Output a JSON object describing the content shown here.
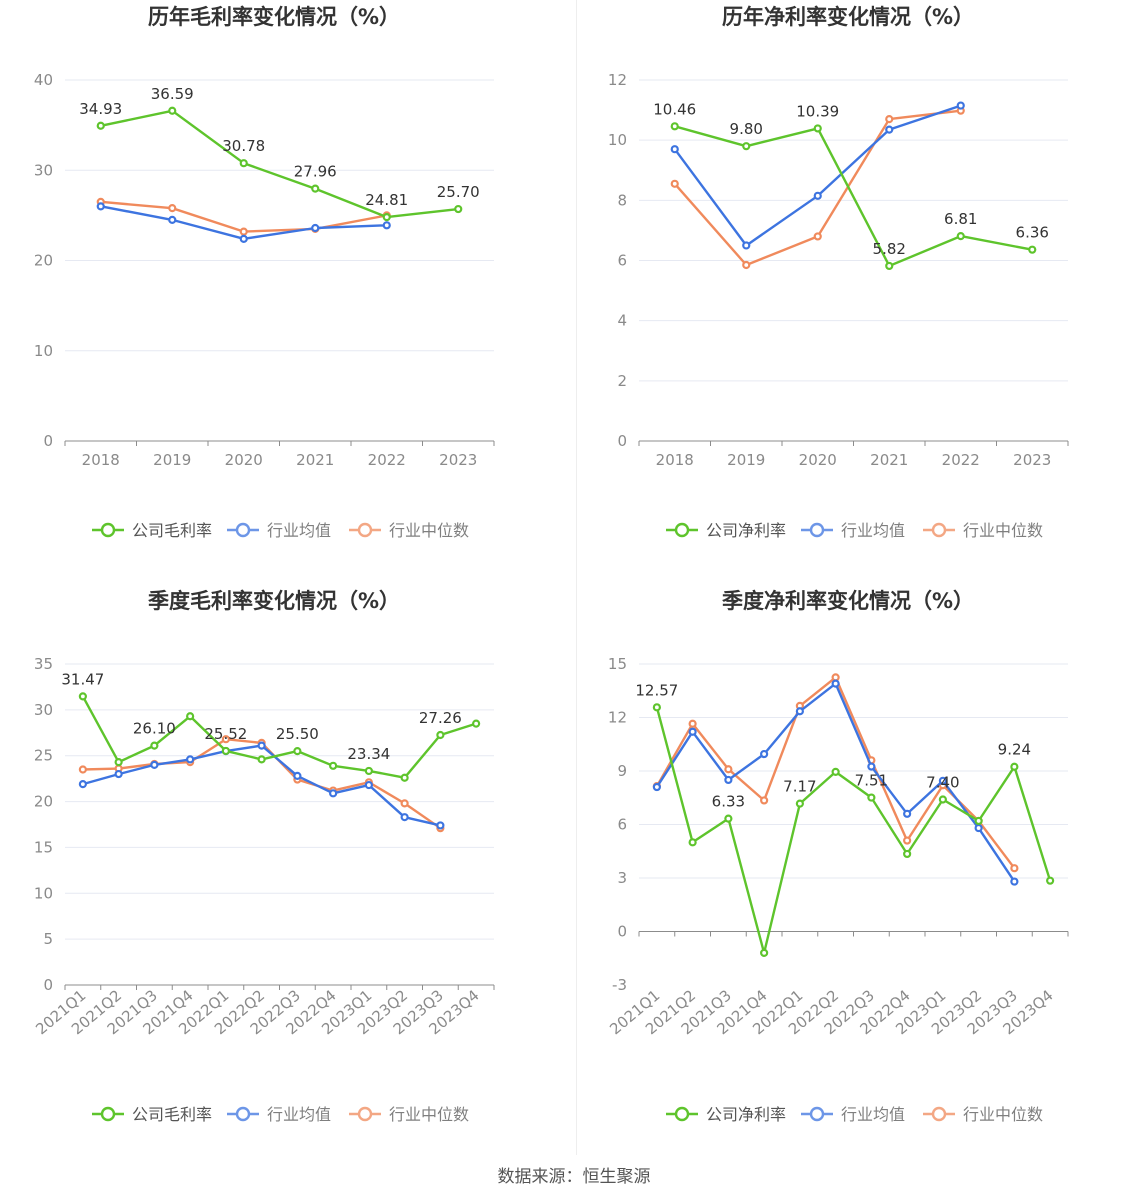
{
  "source": "数据来源：恒生聚源",
  "colors": {
    "company": "#5ec42c",
    "avg": "#3d74e0",
    "median": "#f08a5c"
  },
  "chart_data": [
    {
      "type": "line",
      "title": "历年毛利率变化情况（%）",
      "categories": [
        "2018",
        "2019",
        "2020",
        "2021",
        "2022",
        "2023"
      ],
      "ylim": [
        0,
        40
      ],
      "yticks": [
        0,
        10,
        20,
        30,
        40
      ],
      "rotate_x": false,
      "grid": true,
      "legend_position": "bottom",
      "series": [
        {
          "name": "公司毛利率",
          "key": "company",
          "values": [
            34.93,
            36.59,
            30.78,
            27.96,
            24.81,
            25.7
          ],
          "labels": [
            "34.93",
            "36.59",
            "30.78",
            "27.96",
            "24.81",
            "25.70"
          ]
        },
        {
          "name": "行业均值",
          "key": "avg",
          "values": [
            26.0,
            24.5,
            22.4,
            23.6,
            23.9,
            null
          ]
        },
        {
          "name": "行业中位数",
          "key": "median",
          "values": [
            26.5,
            25.8,
            23.2,
            23.5,
            25.0,
            null
          ]
        }
      ]
    },
    {
      "type": "line",
      "title": "历年净利率变化情况（%）",
      "categories": [
        "2018",
        "2019",
        "2020",
        "2021",
        "2022",
        "2023"
      ],
      "ylim": [
        0,
        12
      ],
      "yticks": [
        0,
        2,
        4,
        6,
        8,
        10,
        12
      ],
      "rotate_x": false,
      "grid": true,
      "legend_position": "bottom",
      "series": [
        {
          "name": "公司净利率",
          "key": "company",
          "values": [
            10.46,
            9.8,
            10.39,
            5.82,
            6.81,
            6.36
          ],
          "labels": [
            "10.46",
            "9.80",
            "10.39",
            "5.82",
            "6.81",
            "6.36"
          ]
        },
        {
          "name": "行业均值",
          "key": "avg",
          "values": [
            9.7,
            6.5,
            8.15,
            10.35,
            11.15,
            null
          ]
        },
        {
          "name": "行业中位数",
          "key": "median",
          "values": [
            8.55,
            5.85,
            6.8,
            10.7,
            10.98,
            null
          ]
        }
      ]
    },
    {
      "type": "line",
      "title": "季度毛利率变化情况（%）",
      "categories": [
        "2021Q1",
        "2021Q2",
        "2021Q3",
        "2021Q4",
        "2022Q1",
        "2022Q2",
        "2022Q3",
        "2022Q4",
        "2023Q1",
        "2023Q2",
        "2023Q3",
        "2023Q4"
      ],
      "ylim": [
        0,
        35
      ],
      "yticks": [
        0,
        5,
        10,
        15,
        20,
        25,
        30,
        35
      ],
      "rotate_x": true,
      "grid": true,
      "legend_position": "bottom",
      "series": [
        {
          "name": "公司毛利率",
          "key": "company",
          "values": [
            31.47,
            24.3,
            26.1,
            29.3,
            25.52,
            24.6,
            25.5,
            23.9,
            23.34,
            22.6,
            27.26,
            28.5
          ],
          "labels": [
            "31.47",
            "",
            "26.10",
            "",
            "25.52",
            "",
            "25.50",
            "",
            "23.34",
            "",
            "27.26",
            ""
          ]
        },
        {
          "name": "行业均值",
          "key": "avg",
          "values": [
            21.9,
            23.0,
            24.0,
            24.6,
            25.5,
            26.1,
            22.8,
            20.9,
            21.8,
            18.3,
            17.4,
            null
          ]
        },
        {
          "name": "行业中位数",
          "key": "median",
          "values": [
            23.5,
            23.6,
            24.1,
            24.3,
            26.8,
            26.4,
            22.4,
            21.2,
            22.1,
            19.8,
            17.1,
            null
          ]
        }
      ]
    },
    {
      "type": "line",
      "title": "季度净利率变化情况（%）",
      "categories": [
        "2021Q1",
        "2021Q2",
        "2021Q3",
        "2021Q4",
        "2022Q1",
        "2022Q2",
        "2022Q3",
        "2022Q4",
        "2023Q1",
        "2023Q2",
        "2023Q3",
        "2023Q4"
      ],
      "ylim": [
        -3,
        15
      ],
      "yticks": [
        -3,
        0,
        3,
        6,
        9,
        12,
        15
      ],
      "rotate_x": true,
      "grid": true,
      "legend_position": "bottom",
      "series": [
        {
          "name": "公司净利率",
          "key": "company",
          "values": [
            12.57,
            5.0,
            6.33,
            -1.2,
            7.17,
            8.95,
            7.51,
            4.35,
            7.4,
            6.2,
            9.24,
            2.85
          ],
          "labels": [
            "12.57",
            "",
            "6.33",
            "",
            "7.17",
            "",
            "7.51",
            "",
            "7.40",
            "",
            "9.24",
            ""
          ]
        },
        {
          "name": "行业均值",
          "key": "avg",
          "values": [
            8.1,
            11.2,
            8.5,
            9.95,
            12.35,
            13.9,
            9.25,
            6.6,
            8.45,
            5.8,
            2.8,
            null
          ]
        },
        {
          "name": "行业中位数",
          "key": "median",
          "values": [
            8.15,
            11.65,
            9.1,
            7.35,
            12.65,
            14.25,
            9.6,
            5.1,
            8.2,
            6.2,
            3.55,
            null
          ]
        }
      ]
    }
  ]
}
